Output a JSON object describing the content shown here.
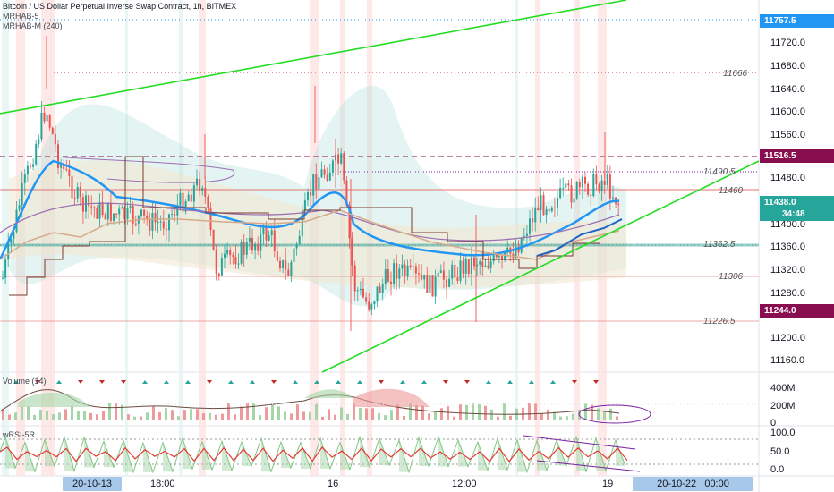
{
  "header": {
    "title": "Bitcoin / US Dollar Perpetual Inverse Swap Contract, 1h, BITMEX",
    "indicators": [
      "MRHAB-5",
      "MRHAB-M (240)"
    ]
  },
  "volume_pane": {
    "label": "Volume (14)",
    "axis": [
      "400M",
      "200M",
      "0"
    ]
  },
  "oscillator_pane": {
    "label": "wRSI-5R",
    "axis": [
      "100.0",
      "50.0",
      "0.0"
    ]
  },
  "price_axis": {
    "ticks": [
      "11720.0",
      "11680.0",
      "11640.0",
      "11600.0",
      "11560.0",
      "11480.0",
      "11400.0",
      "11360.0",
      "11320.0",
      "11280.0",
      "11200.0",
      "11160.0"
    ],
    "top_label": "11757.5",
    "resistance_label": "11516.5",
    "current_price": "11438.0",
    "countdown": "34:48",
    "support_label": "11244.0"
  },
  "level_labels": [
    "11666",
    "11490.5",
    "11460",
    "11362.5",
    "11306",
    "11226.5"
  ],
  "time_axis": {
    "start_box": "20-10-13",
    "labels": [
      "18:00",
      "16",
      "12:00",
      "19"
    ],
    "end_box": "20-10-22   00:00"
  },
  "colors": {
    "up": "#26a69a",
    "down": "#ef5350",
    "trendline": "#22dd22",
    "price_blue": "#2196f3",
    "support_maroon": "#880e4f",
    "resistance_red": "#f44336"
  }
}
